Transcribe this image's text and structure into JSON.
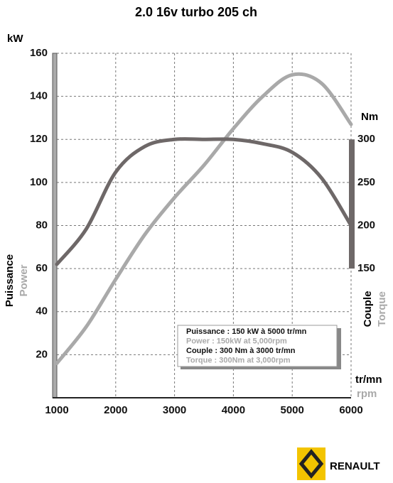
{
  "chart_data": {
    "type": "line",
    "title": "2.0 16v turbo 205 ch",
    "ylabel": "kW",
    "y2label": "Nm",
    "xlabel": "tr/mn",
    "xlabel_en": "rpm",
    "ylabel_name": "Puissance",
    "y2label_name": "Couple",
    "x": [
      1000,
      1500,
      2000,
      2500,
      3000,
      3500,
      4000,
      4500,
      5000,
      5500,
      6000
    ],
    "xlim": [
      1000,
      6000
    ],
    "xticks": [
      1000,
      2000,
      3000,
      4000,
      5000,
      6000
    ],
    "ylim": [
      0,
      160
    ],
    "yticks": [
      20,
      40,
      60,
      80,
      100,
      120,
      140,
      160
    ],
    "y2lim": [
      0,
      400
    ],
    "y2ticks": [
      150,
      200,
      250,
      300
    ],
    "grid": true,
    "series": [
      {
        "name": "Power",
        "color": "#a9a9a9",
        "values": [
          16,
          33,
          55,
          76,
          93,
          108,
          125,
          140,
          150,
          146,
          127
        ]
      },
      {
        "name": "Torque",
        "color": "#6e6868",
        "axis": "y2",
        "values": [
          155,
          196,
          262,
          292,
          300,
          300,
          300,
          295,
          285,
          255,
          200
        ]
      }
    ],
    "annotations": [
      "Puissance : 150 kW à 5000 tr/mn",
      "Power : 150kW at 5,000rpm",
      "Couple : 300 Nm à 3000 tr/mn",
      "Torque : 300Nm at 3,000rpm"
    ]
  },
  "logo": {
    "brand": "RENAULT"
  }
}
